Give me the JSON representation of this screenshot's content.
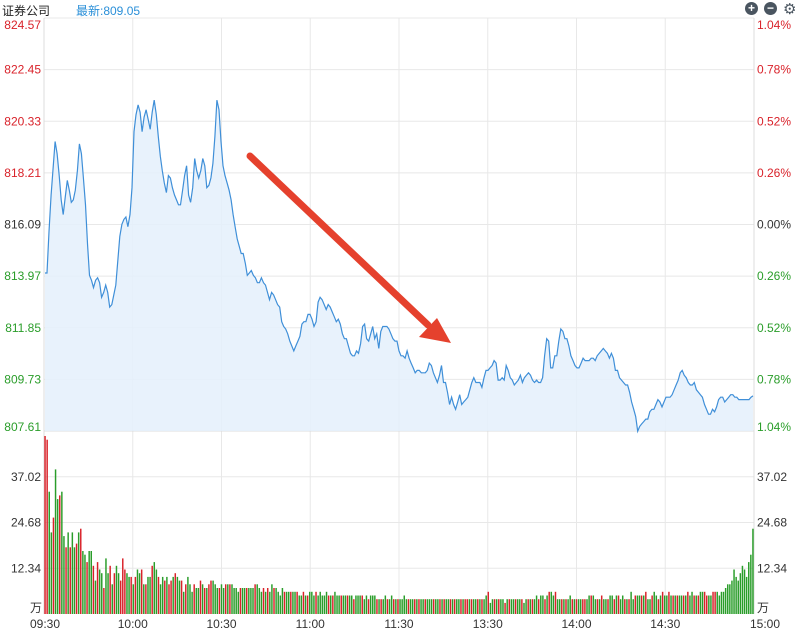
{
  "header": {
    "title": "证券公司",
    "latest": "最新:809.05",
    "zoom_in_icon": "plus-circle-icon",
    "zoom_out_icon": "minus-circle-icon",
    "settings_icon": "gear-icon"
  },
  "colors": {
    "up": "#d9222a",
    "down": "#2a9d2a",
    "line": "#3f8fd8",
    "area": "#e4f0fb",
    "grid": "#e8e8e8",
    "arrow": "#e5412d"
  },
  "chart_data": [
    {
      "type": "area",
      "panel": "price",
      "title": "",
      "ylim": [
        807.61,
        824.57
      ],
      "y_ticks_left": [
        "824.57",
        "822.45",
        "820.33",
        "818.21",
        "816.09",
        "813.97",
        "811.85",
        "809.73",
        "807.61"
      ],
      "y_ticks_right": [
        "1.04%",
        "0.78%",
        "0.52%",
        "0.26%",
        "0.00%",
        "0.26%",
        "0.52%",
        "0.78%",
        "1.04%"
      ],
      "prev_close": 816.09,
      "x_ticks": [
        "09:30",
        "10:00",
        "10:30",
        "11:00",
        "11:30",
        "13:30",
        "14:00",
        "14:30",
        "15:00"
      ],
      "series": [
        {
          "values": [
            814.1,
            814.1,
            815.8,
            817.3,
            818.4,
            819.5,
            819.0,
            818.1,
            817.1,
            816.5,
            817.2,
            817.9,
            817.5,
            817.0,
            817.1,
            817.5,
            818.3,
            819.4,
            819.0,
            818.0,
            816.9,
            815.3,
            814.0,
            813.8,
            813.5,
            813.8,
            813.9,
            813.7,
            813.1,
            813.3,
            813.6,
            813.3,
            812.7,
            812.8,
            813.2,
            813.6,
            814.6,
            815.6,
            816.1,
            816.3,
            816.4,
            816.0,
            816.5,
            817.6,
            819.9,
            820.6,
            821.0,
            820.7,
            819.9,
            820.5,
            820.8,
            820.4,
            820.0,
            820.7,
            821.2,
            820.6,
            819.7,
            818.9,
            818.3,
            817.8,
            817.4,
            818.1,
            818.0,
            817.6,
            817.3,
            817.1,
            816.9,
            816.9,
            817.5,
            818.1,
            818.5,
            817.3,
            817.0,
            817.6,
            818.8,
            818.3,
            818.0,
            818.3,
            818.8,
            818.5,
            817.6,
            817.7,
            818.0,
            818.6,
            819.7,
            821.2,
            820.8,
            819.5,
            818.5,
            818.1,
            817.8,
            817.5,
            817.1,
            816.5,
            816.0,
            815.5,
            815.2,
            814.9,
            814.9,
            814.5,
            814.0,
            814.1,
            814.2,
            814.0,
            813.9,
            813.7,
            813.7,
            813.9,
            813.7,
            813.6,
            813.3,
            813.0,
            813.3,
            813.2,
            813.0,
            812.8,
            812.7,
            812.1,
            811.9,
            811.8,
            811.6,
            811.3,
            811.1,
            810.9,
            811.1,
            811.3,
            811.5,
            812.0,
            812.1,
            812.1,
            812.4,
            812.4,
            812.2,
            811.9,
            812.1,
            812.9,
            813.1,
            813.0,
            812.8,
            812.6,
            812.8,
            812.7,
            812.5,
            812.3,
            812.1,
            812.2,
            812.0,
            811.6,
            811.4,
            811.4,
            811.1,
            810.8,
            810.7,
            810.7,
            810.9,
            810.8,
            811.2,
            811.9,
            812.0,
            811.4,
            811.3,
            811.6,
            811.9,
            811.4,
            811.6,
            811.0,
            811.7,
            811.9,
            811.9,
            811.9,
            811.8,
            811.6,
            811.4,
            811.3,
            811.3,
            810.9,
            810.7,
            810.7,
            810.6,
            810.9,
            810.6,
            810.4,
            810.2,
            810.0,
            810.1,
            810.1,
            810.0,
            810.0,
            810.0,
            810.1,
            810.4,
            810.3,
            810.0,
            809.8,
            809.6,
            809.9,
            810.3,
            809.6,
            809.6,
            809.2,
            808.7,
            809.0,
            808.7,
            808.5,
            808.8,
            809.1,
            808.7,
            808.8,
            808.9,
            809.0,
            809.3,
            809.6,
            809.8,
            809.6,
            809.6,
            809.6,
            809.4,
            809.8,
            810.1,
            810.1,
            810.2,
            810.3,
            810.5,
            810.4,
            809.7,
            809.7,
            809.8,
            809.7,
            810.3,
            810.1,
            809.8,
            809.7,
            809.5,
            809.6,
            809.7,
            809.9,
            809.6,
            809.8,
            809.9,
            810.0,
            809.9,
            809.7,
            809.6,
            809.7,
            809.6,
            809.6,
            809.8,
            810.7,
            811.4,
            811.3,
            810.2,
            810.2,
            810.7,
            810.7,
            811.3,
            811.8,
            811.7,
            811.4,
            811.4,
            811.1,
            810.7,
            810.5,
            810.3,
            810.2,
            810.2,
            810.4,
            810.6,
            810.5,
            810.5,
            810.5,
            810.6,
            810.6,
            810.5,
            810.7,
            810.8,
            810.9,
            811.0,
            810.9,
            810.8,
            810.6,
            810.8,
            810.6,
            810.1,
            810.1,
            809.8,
            809.7,
            809.6,
            809.5,
            809.5,
            809.2,
            808.8,
            808.5,
            808.2,
            807.6,
            807.8,
            807.9,
            808.0,
            808.1,
            808.1,
            808.4,
            808.5,
            808.5,
            808.7,
            808.9,
            808.8,
            808.6,
            808.8,
            809.0,
            809.0,
            809.0,
            809.1,
            809.3,
            809.5,
            809.7,
            810.0,
            810.1,
            809.9,
            809.8,
            809.6,
            809.5,
            809.5,
            809.6,
            809.3,
            809.2,
            809.1,
            809.0,
            808.7,
            808.5,
            808.3,
            808.3,
            808.5,
            808.4,
            808.6,
            808.9,
            809.0,
            809.0,
            808.8,
            808.9,
            809.0,
            809.1,
            809.1,
            809.0,
            809.0,
            808.9,
            808.9,
            808.9,
            808.9,
            808.9,
            808.9,
            809.0,
            809.05
          ]
        }
      ]
    },
    {
      "type": "bar",
      "panel": "volume",
      "title": "",
      "ylim": [
        0,
        49.36
      ],
      "y_ticks": [
        "37.02",
        "24.68",
        "12.34"
      ],
      "unit_label": "万",
      "series": [
        {
          "values": [
            48,
            47,
            33,
            22,
            26,
            39,
            31,
            32,
            33,
            21,
            18,
            22,
            18,
            22,
            18,
            19,
            22,
            23,
            17,
            16,
            14,
            17,
            17,
            13,
            9,
            14,
            12,
            11,
            7,
            15,
            11,
            13,
            8,
            11,
            13,
            11,
            9,
            15,
            12,
            11,
            10,
            10,
            8,
            10,
            12,
            11,
            12,
            8,
            8,
            10,
            10,
            13,
            14,
            12,
            10,
            8,
            10,
            9,
            10,
            8,
            9,
            10,
            11,
            10,
            9,
            9,
            6,
            8,
            10,
            8,
            6,
            8,
            7,
            7,
            9,
            8,
            7,
            7,
            8,
            9,
            9,
            8,
            7,
            7,
            8,
            7,
            8,
            8,
            8,
            8,
            7,
            7,
            6,
            7,
            7,
            7,
            7,
            7,
            7,
            7,
            8,
            8,
            7,
            6,
            7,
            6,
            7,
            6,
            8,
            7,
            7,
            6,
            5,
            7,
            6,
            6,
            6,
            6,
            6,
            6,
            6,
            5,
            5,
            6,
            5,
            5,
            6,
            6,
            5,
            6,
            5,
            6,
            5,
            5,
            6,
            5,
            5,
            5,
            6,
            5,
            5,
            5,
            5,
            5,
            5,
            5,
            5,
            4,
            5,
            5,
            5,
            5,
            4,
            5,
            4,
            5,
            5,
            5,
            4,
            4,
            4,
            4,
            5,
            4,
            4,
            5,
            4,
            4,
            4,
            4,
            4,
            5,
            4,
            4,
            4,
            4,
            4,
            4,
            4,
            4,
            4,
            4,
            4,
            4,
            4,
            4,
            4,
            4,
            4,
            4,
            4,
            4,
            4,
            4,
            4,
            4,
            4,
            4,
            4,
            4,
            4,
            4,
            4,
            4,
            4,
            4,
            4,
            4,
            4,
            4,
            5,
            6,
            3,
            4,
            4,
            4,
            4,
            4,
            4,
            3,
            4,
            4,
            4,
            4,
            4,
            4,
            4,
            4,
            3,
            4,
            4,
            4,
            4,
            4,
            5,
            4,
            5,
            5,
            4,
            5,
            6,
            6,
            5,
            6,
            4,
            4,
            4,
            4,
            4,
            4,
            5,
            4,
            4,
            4,
            4,
            4,
            4,
            4,
            4,
            5,
            5,
            5,
            4,
            4,
            4,
            5,
            4,
            4,
            4,
            5,
            5,
            4,
            5,
            5,
            4,
            5,
            4,
            4,
            4,
            6,
            4,
            5,
            5,
            5,
            5,
            5,
            6,
            4,
            4,
            5,
            6,
            5,
            4,
            5,
            6,
            5,
            5,
            6,
            5,
            5,
            5,
            5,
            5,
            5,
            5,
            5,
            6,
            5,
            6,
            5,
            5,
            5,
            6,
            6,
            6,
            5,
            5,
            5,
            6,
            6,
            6,
            5,
            6,
            6,
            7,
            8,
            8,
            9,
            12,
            10,
            9,
            11,
            13,
            12,
            10,
            14,
            16,
            23
          ],
          "ups": [
            1,
            1,
            0,
            0,
            1,
            0,
            0,
            1,
            0,
            0,
            1,
            0,
            1,
            0,
            0,
            1,
            0,
            1,
            0,
            0,
            1,
            0,
            0,
            1,
            0,
            1,
            0,
            0,
            1,
            0,
            0,
            1,
            0,
            1,
            0,
            0,
            1,
            1,
            1,
            0,
            0,
            1,
            0,
            1,
            0,
            0,
            1,
            0,
            1,
            0,
            0,
            1,
            0,
            0,
            1,
            0,
            0,
            1,
            0,
            1,
            1,
            0,
            1,
            0,
            0,
            1,
            0,
            1,
            0,
            0,
            0,
            1,
            0,
            0,
            1,
            0,
            1,
            0,
            1,
            1,
            0,
            0,
            0,
            1,
            0,
            0,
            1,
            0,
            1,
            0,
            0,
            0,
            0,
            1,
            0,
            0,
            1,
            0,
            0,
            0,
            1,
            0,
            0,
            0,
            1,
            0,
            1,
            0,
            0,
            1,
            0,
            0,
            0,
            0,
            1,
            0,
            0,
            1,
            0,
            0,
            1,
            0,
            0,
            1,
            0,
            1,
            0,
            0,
            0,
            1,
            0,
            0,
            0,
            0,
            0,
            1,
            0,
            1,
            0,
            0,
            0,
            1,
            0,
            0,
            1,
            0,
            0,
            1,
            0,
            0,
            0,
            1,
            0,
            0,
            1,
            0,
            0,
            0,
            1,
            0,
            1,
            0,
            0,
            1,
            0,
            0,
            1,
            0,
            1,
            0,
            0,
            0,
            0,
            1,
            0,
            0,
            1,
            0,
            1,
            0,
            0,
            1,
            0,
            0,
            0,
            1,
            0,
            0,
            1,
            0,
            1,
            0,
            0,
            1,
            0,
            1,
            0,
            0,
            1,
            0,
            1,
            1,
            0,
            1,
            0,
            0,
            1,
            0,
            1,
            0,
            0,
            1,
            0,
            0,
            1,
            0,
            1,
            0,
            0,
            1,
            0,
            1,
            0,
            0,
            1,
            0,
            0,
            1,
            0,
            0,
            1,
            0,
            1,
            0,
            0,
            1,
            0,
            0,
            1,
            0,
            1,
            0,
            0,
            1,
            0,
            0,
            1,
            0,
            1,
            0,
            0,
            1,
            0,
            1,
            0,
            0,
            1,
            1,
            0,
            0,
            1,
            0,
            0,
            1,
            0,
            1,
            0,
            0,
            1,
            0,
            0,
            1,
            0,
            1,
            0,
            0,
            1,
            0,
            1,
            0,
            0,
            1,
            0,
            0,
            1,
            0,
            1,
            0,
            0,
            1,
            0,
            0,
            1,
            0,
            1,
            0,
            0,
            1,
            0,
            1,
            0,
            1,
            0,
            0,
            1,
            0,
            1,
            0,
            0,
            1,
            0,
            1,
            0,
            0,
            1,
            1,
            0,
            0,
            1,
            1
          ]
        }
      ]
    }
  ]
}
